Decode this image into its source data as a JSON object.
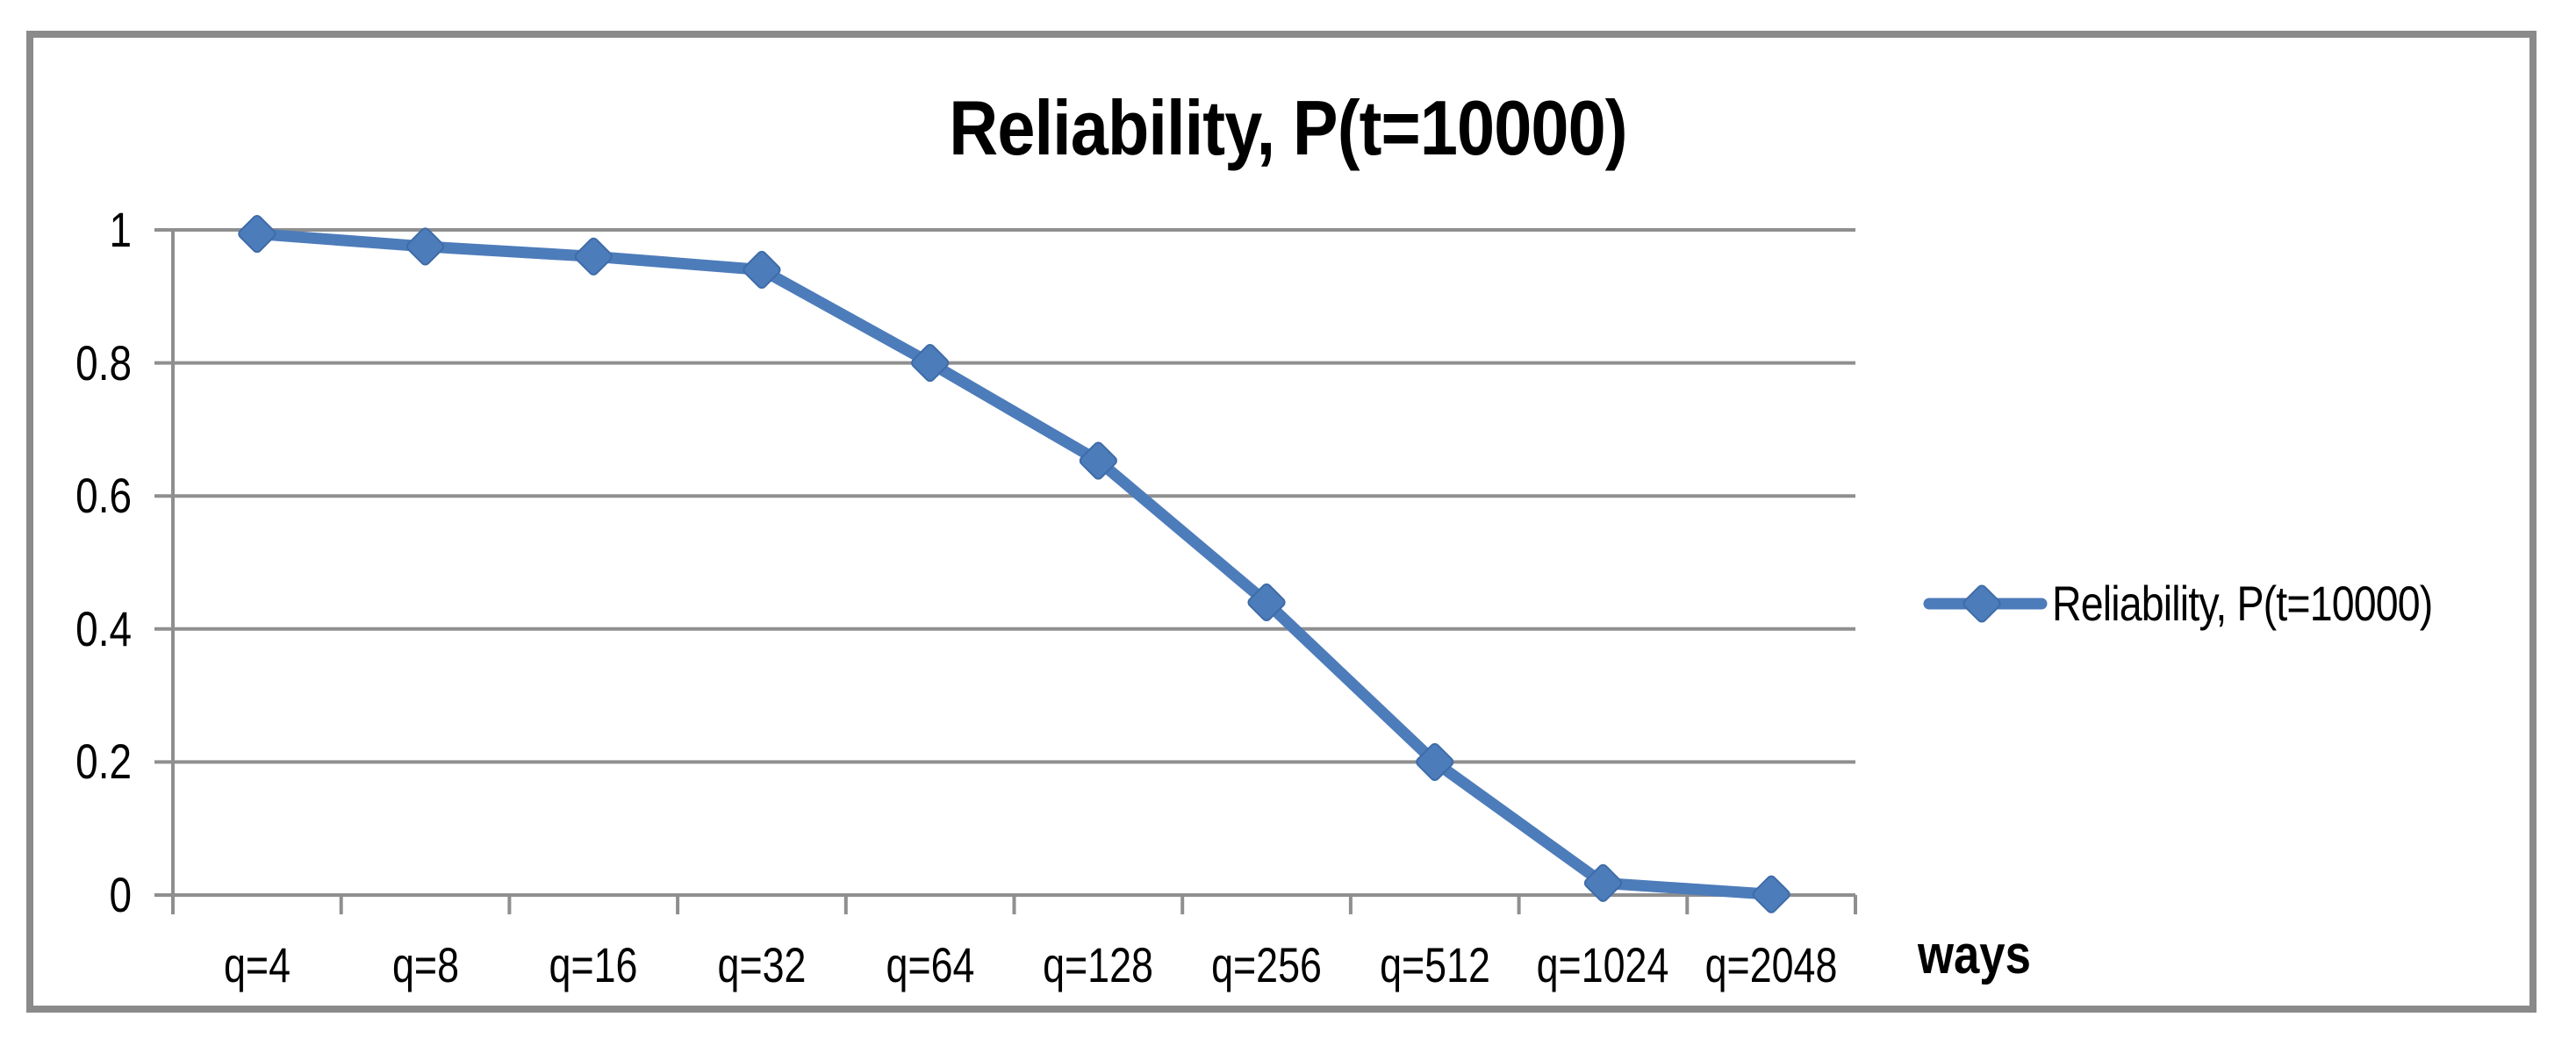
{
  "title": "Reliability, P(t=10000)",
  "x_axis_title": "ways",
  "legend": {
    "label": "Reliability, P(t=10000)",
    "position": "right"
  },
  "colors": {
    "series_line": "#4d7cba",
    "marker_fill": "#4d7cba",
    "marker_edge": "#3e6ca8",
    "gridline": "#8f8f8f",
    "axis_line": "#8f8f8f",
    "chart_border": "#8a8a8a",
    "text": "#000000",
    "background": "#ffffff"
  },
  "chart_data": {
    "type": "line",
    "title": "Reliability, P(t=10000)",
    "xlabel": "ways",
    "ylabel": "",
    "categories": [
      "q=4",
      "q=8",
      "q=16",
      "q=32",
      "q=64",
      "q=128",
      "q=256",
      "q=512",
      "q=1024",
      "q=2048"
    ],
    "series": [
      {
        "name": "Reliability, P(t=10000)",
        "values": [
          0.994,
          0.975,
          0.96,
          0.94,
          0.8,
          0.653,
          0.44,
          0.2,
          0.018,
          0.001
        ]
      }
    ],
    "ylim": [
      0,
      1
    ],
    "yticks": [
      0,
      0.2,
      0.4,
      0.6,
      0.8,
      1
    ],
    "ytick_labels": [
      "0",
      "0.2",
      "0.4",
      "0.6",
      "0.8",
      "1"
    ],
    "grid": true,
    "gridlines": "horizontal",
    "marker": "diamond",
    "legend_position": "right"
  }
}
